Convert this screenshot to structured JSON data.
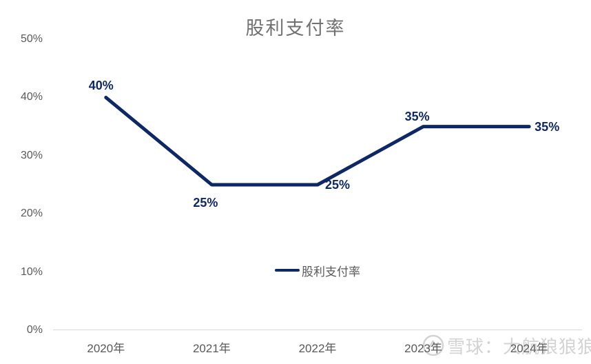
{
  "chart_data": {
    "type": "line",
    "title": "股利支付率",
    "categories": [
      "2020年",
      "2021年",
      "2022年",
      "2023年",
      "2024年"
    ],
    "series": [
      {
        "name": "股利支付率",
        "values": [
          40,
          25,
          25,
          35,
          35
        ],
        "labels": [
          "40%",
          "25%",
          "25%",
          "35%",
          "35%"
        ],
        "color": "#0e2866"
      }
    ],
    "yticks": [
      {
        "label": "0%",
        "value": 0
      },
      {
        "label": "10%",
        "value": 10
      },
      {
        "label": "20%",
        "value": 20
      },
      {
        "label": "30%",
        "value": 30
      },
      {
        "label": "40%",
        "value": 40
      },
      {
        "label": "50%",
        "value": 50
      }
    ],
    "ylim": [
      0,
      50
    ],
    "xlabel": "",
    "ylabel": "",
    "grid": false,
    "legend_position": "inside-bottom-center",
    "colors": {
      "line": "#0e2866",
      "data_label": "#0e2866",
      "title": "#717171",
      "axis_text": "#595959",
      "axis_line": "#d9d9d9"
    }
  },
  "watermark": {
    "text": "雪球：大航狼狼狼",
    "logo": "xueqiu-logo",
    "color": "#d3d3d3"
  }
}
